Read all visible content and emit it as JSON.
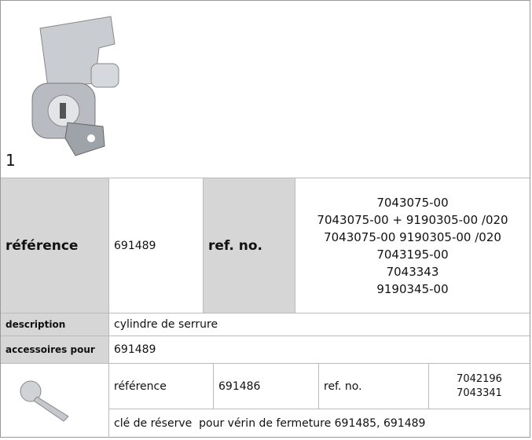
{
  "image_label": "1",
  "main": {
    "reference_label": "référence",
    "reference": "691489",
    "ref_no_label": "ref. no.",
    "ref_numbers": [
      "7043075-00",
      "7043075-00 + 9190305-00 /020",
      "7043075-00 9190305-00 /020",
      "7043195-00",
      "7043343",
      "9190345-00"
    ]
  },
  "rows": [
    {
      "label": "description",
      "value": "cylindre de serrure"
    },
    {
      "label": "accessoires pour",
      "value": "691489"
    }
  ],
  "accessory": {
    "reference_label": "référence",
    "reference": "691486",
    "ref_no_label": "ref. no.",
    "ref_numbers": [
      "7042196",
      "7043341"
    ],
    "description": "clé de réserve  pour vérin de fermeture 691485, 691489"
  }
}
